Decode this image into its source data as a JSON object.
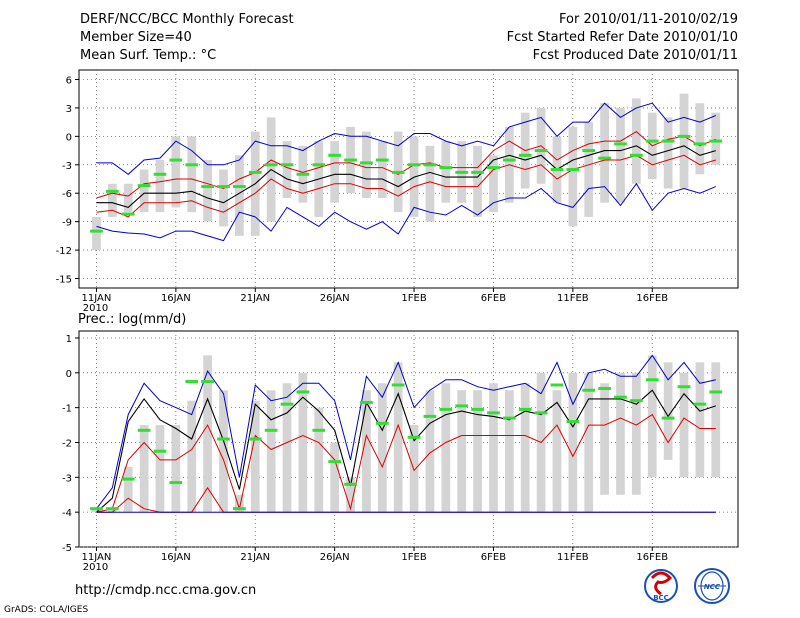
{
  "header": {
    "title": "DERF/NCC/BCC Monthly Forecast",
    "member_size": "Member Size=40",
    "variable": "Mean Surf. Temp.: °C",
    "for_range": "For 2010/01/11-2010/02/19",
    "fcst_started": "Fcst Started Refer Date 2010/01/10",
    "fcst_produced": "Fcst Produced Date 2010/01/11"
  },
  "footer": {
    "url": "http://cmdp.ncc.cma.gov.cn",
    "grads": "GrADS: COLA/IGES",
    "logo_bcc": "BCC",
    "logo_ncc": "NCC"
  },
  "colors": {
    "box": "#d4d4d4",
    "median": "#33dd33",
    "envelope_max": "#0000cc",
    "envelope_min": "#0000cc",
    "percentile": "#dd0000",
    "mean": "#000000",
    "grid": "#666666"
  },
  "chart_data": [
    {
      "type": "box",
      "title": "Mean Surf. Temp.: °C",
      "days": 40,
      "ylim": [
        -16,
        7
      ],
      "yticks": [
        6,
        3,
        0,
        -3,
        -6,
        -9,
        -12,
        -15
      ],
      "xtick_days": [
        1,
        6,
        11,
        16,
        21,
        26,
        31,
        36
      ],
      "xtick_labels": [
        "11JAN",
        "16JAN",
        "21JAN",
        "26JAN",
        "1FEB",
        "6FEB",
        "11FEB",
        "16FEB"
      ],
      "year_label": "2010",
      "box_low": [
        -12.0,
        -8.5,
        -8.0,
        -8.0,
        -8.0,
        -7.5,
        -8.0,
        -9.0,
        -9.5,
        -10.5,
        -10.5,
        -9.0,
        -6.5,
        -7.0,
        -8.5,
        -7.0,
        -6.0,
        -6.5,
        -6.5,
        -8.0,
        -8.5,
        -9.0,
        -7.0,
        -7.0,
        -8.5,
        -8.0,
        -7.0,
        -5.5,
        -5.0,
        -7.0,
        -9.5,
        -8.5,
        -7.0,
        -7.0,
        -5.0,
        -4.5,
        -5.5,
        -5.5,
        -4.0,
        -3.0
      ],
      "box_high": [
        -8.5,
        -5.0,
        -5.0,
        -3.5,
        -2.5,
        0.0,
        0.0,
        -2.5,
        -3.5,
        -2.0,
        0.5,
        2.0,
        -0.5,
        -1.0,
        -0.5,
        -0.5,
        1.0,
        0.5,
        -0.5,
        0.5,
        0.0,
        -1.0,
        -0.5,
        -0.5,
        -1.0,
        -2.0,
        1.0,
        2.5,
        3.0,
        0.0,
        1.0,
        1.5,
        3.5,
        3.0,
        4.0,
        2.5,
        2.0,
        4.5,
        3.5,
        2.5
      ],
      "median": [
        -10.0,
        -5.8,
        -8.2,
        -5.2,
        -4.0,
        -2.5,
        -3.0,
        -5.3,
        -5.3,
        -5.3,
        -3.8,
        -3.0,
        -3.0,
        -4.0,
        -3.0,
        -2.0,
        -2.5,
        -2.8,
        -2.5,
        -3.8,
        -3.0,
        -3.0,
        -3.3,
        -3.8,
        -3.8,
        -3.3,
        -2.5,
        -2.0,
        -1.5,
        -3.5,
        -3.5,
        -1.5,
        -2.3,
        -0.8,
        -2.0,
        -0.5,
        -0.5,
        0.0,
        -0.8,
        -0.5
      ],
      "mean": [
        -7.0,
        -7.0,
        -7.5,
        -6.0,
        -6.0,
        -6.0,
        -5.8,
        -6.5,
        -7.0,
        -6.0,
        -5.0,
        -3.5,
        -4.5,
        -5.0,
        -4.5,
        -4.0,
        -4.0,
        -4.5,
        -4.5,
        -5.3,
        -4.3,
        -3.8,
        -4.3,
        -4.3,
        -4.3,
        -2.5,
        -2.0,
        -2.5,
        -2.0,
        -3.5,
        -2.5,
        -2.0,
        -1.5,
        -1.5,
        -1.0,
        -2.0,
        -1.5,
        -1.0,
        -2.0,
        -1.5
      ],
      "p_upper": [
        -6.5,
        -6.0,
        -6.3,
        -5.0,
        -4.8,
        -4.5,
        -4.5,
        -5.0,
        -5.5,
        -4.5,
        -3.8,
        -2.5,
        -3.3,
        -3.8,
        -3.3,
        -2.8,
        -2.8,
        -3.3,
        -3.3,
        -4.0,
        -3.0,
        -2.8,
        -3.3,
        -3.3,
        -3.3,
        -1.5,
        -0.5,
        -1.5,
        -1.0,
        -2.5,
        -1.5,
        -0.8,
        -0.5,
        -0.5,
        0.5,
        -1.0,
        -0.3,
        0.0,
        -1.0,
        -0.3
      ],
      "p_lower": [
        -8.0,
        -7.8,
        -8.5,
        -7.0,
        -7.0,
        -7.0,
        -6.8,
        -7.5,
        -8.0,
        -7.0,
        -6.0,
        -4.5,
        -5.5,
        -6.0,
        -5.5,
        -5.0,
        -5.0,
        -5.5,
        -5.5,
        -6.3,
        -5.3,
        -4.8,
        -5.3,
        -5.3,
        -5.3,
        -3.5,
        -3.0,
        -3.5,
        -3.0,
        -4.5,
        -3.5,
        -3.0,
        -2.5,
        -2.5,
        -2.0,
        -3.0,
        -2.5,
        -2.0,
        -3.0,
        -2.5
      ],
      "env_max": [
        -2.8,
        -2.8,
        -4.0,
        -2.5,
        -2.3,
        -0.5,
        -1.5,
        -3.0,
        -3.0,
        -2.5,
        -0.5,
        -1.0,
        -1.0,
        -1.5,
        -0.5,
        0.3,
        0.0,
        0.0,
        -0.5,
        -1.0,
        0.3,
        0.3,
        -0.5,
        -1.0,
        -0.5,
        -1.0,
        1.0,
        1.5,
        2.0,
        0.0,
        1.5,
        1.5,
        3.5,
        2.0,
        3.0,
        3.5,
        1.5,
        2.0,
        1.5,
        2.2
      ],
      "env_min": [
        -9.5,
        -10.0,
        -10.2,
        -10.3,
        -10.7,
        -10.0,
        -10.0,
        -10.5,
        -11.0,
        -8.0,
        -8.5,
        -10.0,
        -7.5,
        -8.5,
        -9.5,
        -8.0,
        -9.0,
        -9.8,
        -9.0,
        -10.3,
        -7.5,
        -8.0,
        -8.3,
        -7.3,
        -8.3,
        -7.0,
        -6.5,
        -6.5,
        -5.5,
        -7.0,
        -7.5,
        -5.5,
        -5.3,
        -7.3,
        -5.0,
        -7.8,
        -6.0,
        -5.5,
        -6.0,
        -5.3
      ]
    },
    {
      "type": "box",
      "title": "Prec.: log(mm/d)",
      "days": 40,
      "ylim": [
        -5,
        1.2
      ],
      "yticks": [
        1,
        0,
        -1,
        -2,
        -3,
        -4,
        -5
      ],
      "xtick_days": [
        1,
        6,
        11,
        16,
        21,
        26,
        31,
        36
      ],
      "xtick_labels": [
        "11JAN",
        "16JAN",
        "21JAN",
        "26JAN",
        "1FEB",
        "6FEB",
        "11FEB",
        "16FEB"
      ],
      "year_label": "2010",
      "box_low": [
        -4.0,
        -4.0,
        -4.0,
        -4.0,
        -4.0,
        -4.0,
        -4.0,
        -4.0,
        -4.0,
        -4.0,
        -4.0,
        -4.0,
        -4.0,
        -4.0,
        -4.0,
        -4.0,
        -4.0,
        -4.0,
        -4.0,
        -4.0,
        -4.0,
        -4.0,
        -4.0,
        -4.0,
        -4.0,
        -4.0,
        -4.0,
        -4.0,
        -4.0,
        -4.0,
        -4.0,
        -4.0,
        -3.5,
        -3.5,
        -3.5,
        -3.0,
        -2.5,
        -3.0,
        -3.0,
        -3.0
      ],
      "box_high": [
        -3.9,
        -3.9,
        -2.7,
        -1.5,
        -1.5,
        -1.5,
        -0.8,
        0.5,
        -0.5,
        -3.5,
        -0.8,
        -0.5,
        -0.3,
        0.0,
        -1.0,
        -2.0,
        -3.0,
        -0.5,
        -0.3,
        0.3,
        -1.5,
        -0.5,
        -0.3,
        -0.5,
        -0.5,
        -0.3,
        -0.5,
        -0.3,
        0.0,
        -0.5,
        0.0,
        0.0,
        -0.3,
        0.0,
        0.0,
        0.5,
        0.3,
        0.0,
        0.3,
        0.3
      ],
      "median": [
        -3.9,
        -3.9,
        -3.05,
        -1.65,
        -2.25,
        -3.15,
        -0.25,
        -0.25,
        -1.9,
        -3.9,
        -1.9,
        -1.65,
        -0.9,
        -0.55,
        -1.65,
        -2.55,
        -3.2,
        -0.85,
        -1.45,
        -0.35,
        -1.85,
        -1.25,
        -1.05,
        -0.95,
        -1.05,
        -1.15,
        -1.3,
        -1.05,
        -1.15,
        -0.35,
        -1.4,
        -0.5,
        -0.45,
        -0.7,
        -0.8,
        -0.2,
        -1.3,
        -0.4,
        -0.9,
        -0.55
      ],
      "mean": [
        -4.0,
        -3.6,
        -1.4,
        -0.75,
        -1.35,
        -1.6,
        -1.9,
        -0.75,
        -1.95,
        -3.35,
        -0.9,
        -1.35,
        -1.15,
        -0.7,
        -1.1,
        -1.65,
        -3.25,
        -0.85,
        -1.65,
        -0.6,
        -1.95,
        -1.45,
        -1.2,
        -1.1,
        -1.2,
        -1.25,
        -1.35,
        -1.1,
        -1.2,
        -0.85,
        -1.55,
        -0.75,
        -0.75,
        -0.75,
        -0.9,
        -0.5,
        -1.25,
        -0.6,
        -1.1,
        -0.95
      ],
      "p_upper": [
        -4.0,
        -3.9,
        -2.5,
        -2.0,
        -2.5,
        -2.5,
        -2.2,
        -1.5,
        -2.5,
        -3.9,
        -1.8,
        -2.2,
        -2.0,
        -1.8,
        -2.0,
        -2.5,
        -3.9,
        -1.8,
        -2.7,
        -1.5,
        -2.8,
        -2.3,
        -2.0,
        -1.8,
        -1.8,
        -1.8,
        -1.8,
        -1.8,
        -2.0,
        -1.5,
        -2.4,
        -1.5,
        -1.5,
        -1.3,
        -1.5,
        -1.2,
        -2.0,
        -1.3,
        -1.6,
        -1.6
      ],
      "p_lower": [
        -4.0,
        -4.0,
        -3.6,
        -3.9,
        -4.0,
        -4.0,
        -4.0,
        -3.3,
        -4.0,
        -4.0,
        -4.0,
        -4.0,
        -4.0,
        -4.0,
        -4.0,
        -4.0,
        -4.0,
        -4.0,
        -4.0,
        -4.0,
        -4.0,
        -4.0,
        -4.0,
        -4.0,
        -4.0,
        -4.0,
        -4.0,
        -4.0,
        -4.0,
        -4.0,
        -4.0,
        -4.0,
        -4.0,
        -4.0,
        -4.0,
        -4.0,
        -4.0,
        -4.0,
        -4.0,
        -4.0
      ],
      "env_max": [
        -3.9,
        -3.3,
        -1.2,
        -0.3,
        -0.8,
        -1.0,
        -1.2,
        0.05,
        -0.6,
        -3.0,
        -0.35,
        -0.8,
        -0.7,
        -0.3,
        -0.3,
        -0.8,
        -2.5,
        -0.1,
        -0.7,
        0.3,
        -1.0,
        -0.5,
        -0.2,
        -0.2,
        -0.4,
        -0.5,
        -0.4,
        -0.3,
        -0.6,
        0.3,
        -0.9,
        0.0,
        0.1,
        -0.1,
        -0.1,
        0.5,
        -0.2,
        0.3,
        -0.3,
        -0.2
      ],
      "env_min": [
        -4.0,
        -4.0,
        -4.0,
        -4.0,
        -4.0,
        -4.0,
        -4.0,
        -4.0,
        -4.0,
        -4.0,
        -4.0,
        -4.0,
        -4.0,
        -4.0,
        -4.0,
        -4.0,
        -4.0,
        -4.0,
        -4.0,
        -4.0,
        -4.0,
        -4.0,
        -4.0,
        -4.0,
        -4.0,
        -4.0,
        -4.0,
        -4.0,
        -4.0,
        -4.0,
        -4.0,
        -4.0,
        -4.0,
        -4.0,
        -4.0,
        -4.0,
        -4.0,
        -4.0,
        -4.0,
        -4.0
      ]
    }
  ]
}
